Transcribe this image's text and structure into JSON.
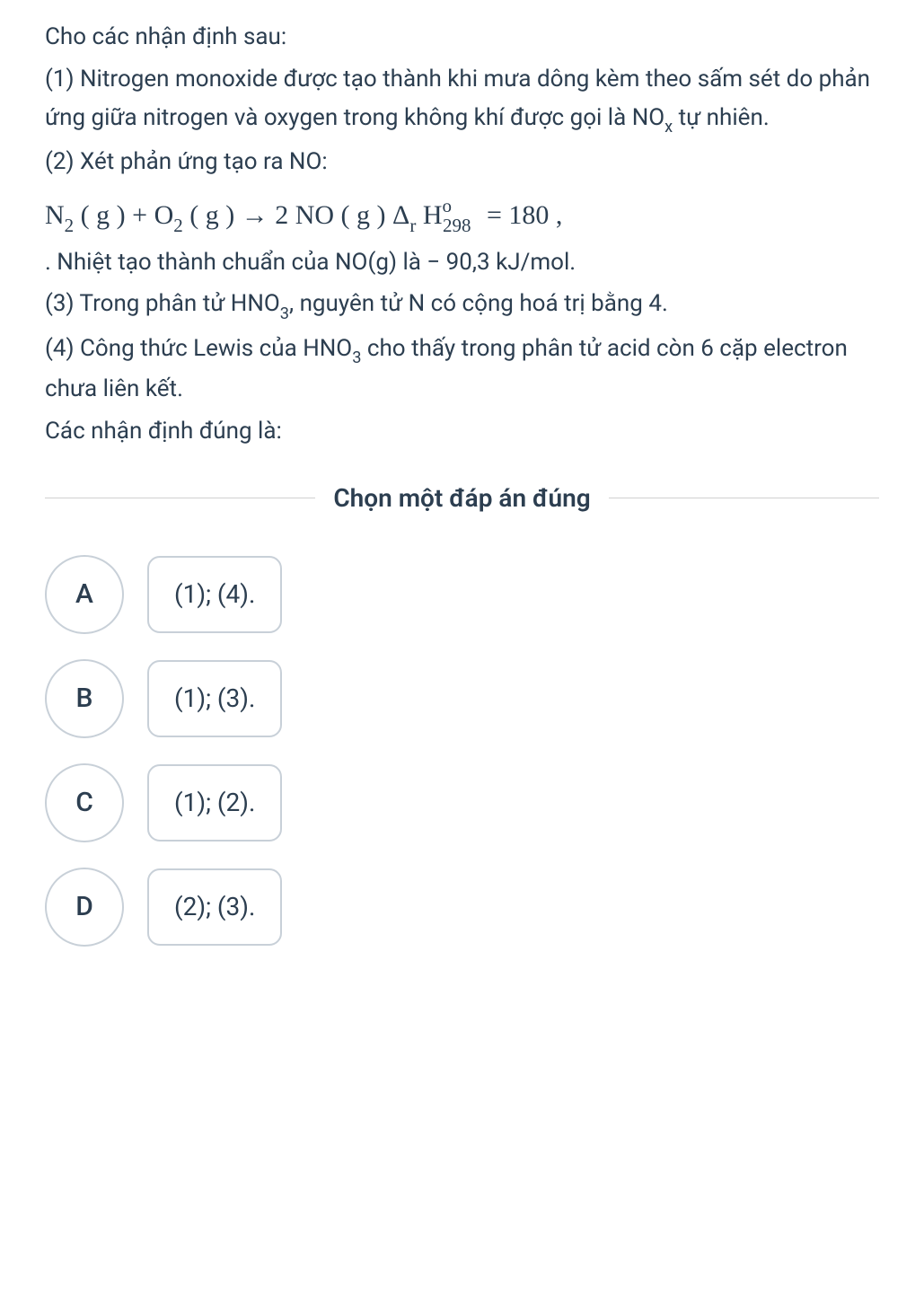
{
  "question": {
    "intro": "Cho các nhận định sau:",
    "stmt1_a": "(1) Nitrogen monoxide được tạo thành khi mưa dông kèm theo sấm sét do phản ứng giữa nitrogen và oxygen trong không khí được gọi là NO",
    "stmt1_sub": "x",
    "stmt1_b": " tự nhiên.",
    "stmt2": "(2) Xét phản ứng tạo ra NO:",
    "equation_n2": "N",
    "equation_n2_sub": "2",
    "equation_g1": " ( g ) + O",
    "equation_o2_sub": "2",
    "equation_g2": " ( g ) → 2 NO ( g )   Δ",
    "equation_r": "r",
    "equation_h": " H",
    "equation_298": "298",
    "equation_o": "o",
    "equation_eq": " = 180 ,",
    "stmt2b": ". Nhiệt tạo thành chuẩn của NO(g) là − 90,3 kJ/mol.",
    "stmt3_a": "(3) Trong phân tử HNO",
    "stmt3_sub": "3",
    "stmt3_b": ", nguyên tử N có cộng hoá trị bằng 4.",
    "stmt4_a": "(4) Công thức Lewis của HNO",
    "stmt4_sub": "3",
    "stmt4_b": " cho thấy trong phân tử acid còn 6 cặp electron chưa liên kết.",
    "prompt": "Các nhận định đúng là:"
  },
  "divider": {
    "text": "Chọn một đáp án đúng"
  },
  "options": {
    "a_letter": "A",
    "a_text": "(1); (4).",
    "b_letter": "B",
    "b_text": "(1); (3).",
    "c_letter": "C",
    "c_text": "(1); (2).",
    "d_letter": "D",
    "d_text": "(2); (3)."
  },
  "styling": {
    "body_bg": "#ffffff",
    "text_color": "#2c3e50",
    "border_color": "#c8d0d8",
    "divider_color": "#d0d0d0",
    "body_fontsize": 26,
    "equation_fontsize": 30,
    "option_letter_fontsize": 30,
    "option_text_fontsize": 28,
    "circle_diameter": 88,
    "box_radius": 14
  }
}
